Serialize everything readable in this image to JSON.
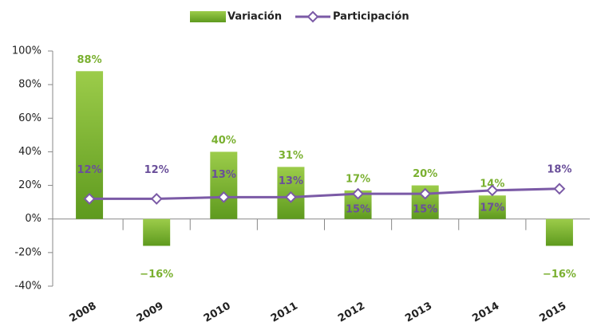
{
  "chart_data": {
    "type": "bar-line",
    "categories": [
      "2008",
      "2009",
      "2010",
      "2011",
      "2012",
      "2013",
      "2014",
      "2015"
    ],
    "series": [
      {
        "name": "Variación",
        "type": "bar",
        "color": "#8cc63f",
        "values": [
          88,
          -16,
          40,
          31,
          17,
          20,
          14,
          -16
        ],
        "value_labels": [
          "88%",
          "−16%",
          "40%",
          "31%",
          "17%",
          "20%",
          "14%",
          "−16%"
        ]
      },
      {
        "name": "Participación",
        "type": "line",
        "color": "#7b5aa6",
        "values": [
          12,
          12,
          13,
          13,
          15,
          15,
          17,
          18
        ],
        "value_labels": [
          "12%",
          "12%",
          "13%",
          "13%",
          "15%",
          "15%",
          "17%",
          "18%"
        ]
      }
    ],
    "ylim": [
      -40,
      100
    ],
    "yticks": [
      {
        "value": -40,
        "label": "-40%"
      },
      {
        "value": -20,
        "label": "-20%"
      },
      {
        "value": 0,
        "label": "0%"
      },
      {
        "value": 20,
        "label": "20%"
      },
      {
        "value": 40,
        "label": "40%"
      },
      {
        "value": 60,
        "label": "60%"
      },
      {
        "value": 80,
        "label": "80%"
      },
      {
        "value": 100,
        "label": "100%"
      }
    ],
    "legend": "top"
  }
}
